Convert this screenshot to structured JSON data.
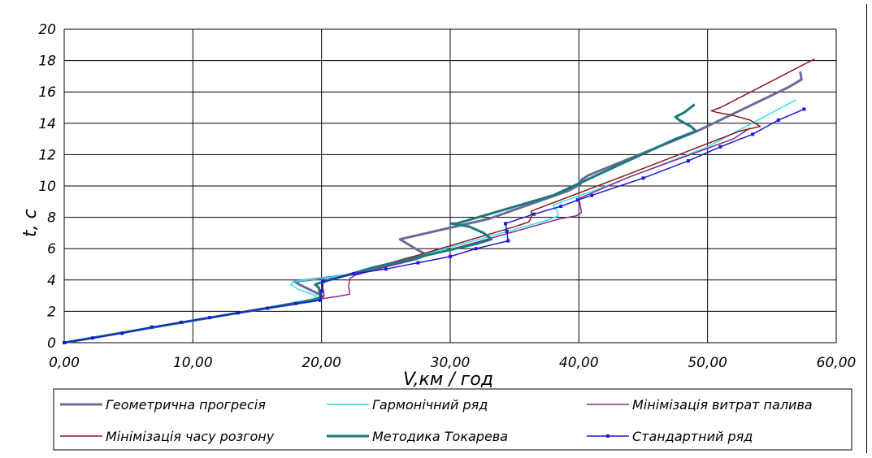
{
  "chart_data": {
    "type": "line",
    "xlabel": "V,км / год",
    "ylabel": "t, с",
    "xlim": [
      0,
      60
    ],
    "ylim": [
      0,
      20
    ],
    "xticks": [
      "0,00",
      "10,00",
      "20,00",
      "30,00",
      "40,00",
      "50,00",
      "60,00"
    ],
    "yticks": [
      "0",
      "2",
      "4",
      "6",
      "8",
      "10",
      "12",
      "14",
      "16",
      "18",
      "20"
    ],
    "grid": true,
    "legend_position": "bottom",
    "series": [
      {
        "name": "Геометрична прогресія",
        "color": "#6b6b9b",
        "width": 3,
        "points": [
          [
            0,
            0
          ],
          [
            13.5,
            1.9
          ],
          [
            19.6,
            2.7
          ],
          [
            20.1,
            2.9
          ],
          [
            19.8,
            3.1
          ],
          [
            18.3,
            3.7
          ],
          [
            17.9,
            3.9
          ],
          [
            22,
            4.3
          ],
          [
            27.2,
            5.3
          ],
          [
            28.2,
            5.6
          ],
          [
            27.5,
            5.9
          ],
          [
            26.3,
            6.5
          ],
          [
            26.1,
            6.6
          ],
          [
            33,
            7.9
          ],
          [
            39.2,
            9.7
          ],
          [
            40.1,
            10.1
          ],
          [
            40.2,
            10.4
          ],
          [
            40.8,
            10.7
          ],
          [
            49.2,
            13.5
          ],
          [
            56.3,
            16.3
          ],
          [
            57.3,
            16.8
          ],
          [
            57.2,
            17.3
          ]
        ]
      },
      {
        "name": "Гармонічний ряд",
        "color": "#33e0f0",
        "width": 1.5,
        "points": [
          [
            0,
            0
          ],
          [
            13.5,
            1.9
          ],
          [
            19.3,
            2.8
          ],
          [
            19.6,
            3.0
          ],
          [
            18.2,
            3.4
          ],
          [
            17.6,
            3.7
          ],
          [
            17.8,
            3.9
          ],
          [
            22,
            4.3
          ],
          [
            30.5,
            6.2
          ],
          [
            37.5,
            7.8
          ],
          [
            38.4,
            8.1
          ],
          [
            38.3,
            8.4
          ],
          [
            38,
            8.8
          ],
          [
            41.5,
            9.8
          ],
          [
            50,
            12.5
          ],
          [
            56.9,
            15.5
          ]
        ]
      },
      {
        "name": "Мінімізація витрат палива",
        "color": "#8b2b8b",
        "width": 1.5,
        "points": [
          [
            0,
            0
          ],
          [
            13.5,
            1.9
          ],
          [
            20,
            2.8
          ],
          [
            21.6,
            3.0
          ],
          [
            22.2,
            3.1
          ],
          [
            22.1,
            3.6
          ],
          [
            22.2,
            4.1
          ],
          [
            22.6,
            4.3
          ],
          [
            32,
            6.4
          ],
          [
            38.5,
            7.9
          ],
          [
            39.8,
            8.1
          ],
          [
            40.2,
            8.3
          ],
          [
            40.1,
            8.8
          ],
          [
            40,
            9.2
          ],
          [
            44,
            10.6
          ],
          [
            52,
            13.0
          ],
          [
            53.3,
            13.7
          ]
        ]
      },
      {
        "name": "Мінімізація часу розгону",
        "color": "#8b1a1a",
        "width": 1.5,
        "points": [
          [
            0,
            0
          ],
          [
            13.5,
            1.9
          ],
          [
            19.7,
            2.8
          ],
          [
            20.2,
            3.0
          ],
          [
            20.1,
            3.5
          ],
          [
            20.1,
            3.9
          ],
          [
            28,
            5.7
          ],
          [
            35,
            7.4
          ],
          [
            36.1,
            7.7
          ],
          [
            36.3,
            8.0
          ],
          [
            36.3,
            8.4
          ],
          [
            44,
            10.8
          ],
          [
            52.5,
            13.5
          ],
          [
            54.1,
            13.8
          ],
          [
            53.3,
            14.2
          ],
          [
            52,
            14.5
          ],
          [
            50.7,
            14.7
          ],
          [
            50.3,
            14.8
          ],
          [
            51,
            15.0
          ],
          [
            58.3,
            18.1
          ]
        ]
      },
      {
        "name": "Методика Токарева",
        "color": "#1a7a7a",
        "width": 3,
        "points": [
          [
            0,
            0
          ],
          [
            13.5,
            1.9
          ],
          [
            19.3,
            2.7
          ],
          [
            19.9,
            2.9
          ],
          [
            19.8,
            3.5
          ],
          [
            19.5,
            3.7
          ],
          [
            19.8,
            3.8
          ],
          [
            24,
            4.8
          ],
          [
            32,
            6.3
          ],
          [
            33.2,
            6.6
          ],
          [
            32.6,
            7.0
          ],
          [
            31.5,
            7.4
          ],
          [
            30.1,
            7.6
          ],
          [
            30.5,
            7.6
          ],
          [
            38,
            9.4
          ],
          [
            47.5,
            13.0
          ],
          [
            49.1,
            13.5
          ],
          [
            48.7,
            13.8
          ],
          [
            47.8,
            14.2
          ],
          [
            47.5,
            14.4
          ],
          [
            48.2,
            14.7
          ],
          [
            49,
            15.2
          ]
        ]
      },
      {
        "name": "Стандартний ряд",
        "color": "#1a1ad9",
        "width": 1.5,
        "points": [
          [
            0,
            0
          ],
          [
            2.2,
            0.3
          ],
          [
            4.5,
            0.6
          ],
          [
            6.8,
            1.0
          ],
          [
            9.1,
            1.3
          ],
          [
            11.3,
            1.6
          ],
          [
            13.5,
            1.9
          ],
          [
            15.8,
            2.2
          ],
          [
            18,
            2.5
          ],
          [
            19.9,
            2.7
          ],
          [
            20,
            3.3
          ],
          [
            20.1,
            3.9
          ],
          [
            22.5,
            4.4
          ],
          [
            25,
            4.7
          ],
          [
            27.5,
            5.1
          ],
          [
            30,
            5.5
          ],
          [
            32,
            6.0
          ],
          [
            34.5,
            6.5
          ],
          [
            34.4,
            7.1
          ],
          [
            34.3,
            7.6
          ],
          [
            36.5,
            8.2
          ],
          [
            38.6,
            8.7
          ],
          [
            39.9,
            9.1
          ],
          [
            41,
            9.4
          ],
          [
            45,
            10.5
          ],
          [
            48.5,
            11.6
          ],
          [
            51,
            12.5
          ],
          [
            53.5,
            13.3
          ],
          [
            55.5,
            14.2
          ],
          [
            57.5,
            14.9
          ]
        ]
      }
    ]
  }
}
